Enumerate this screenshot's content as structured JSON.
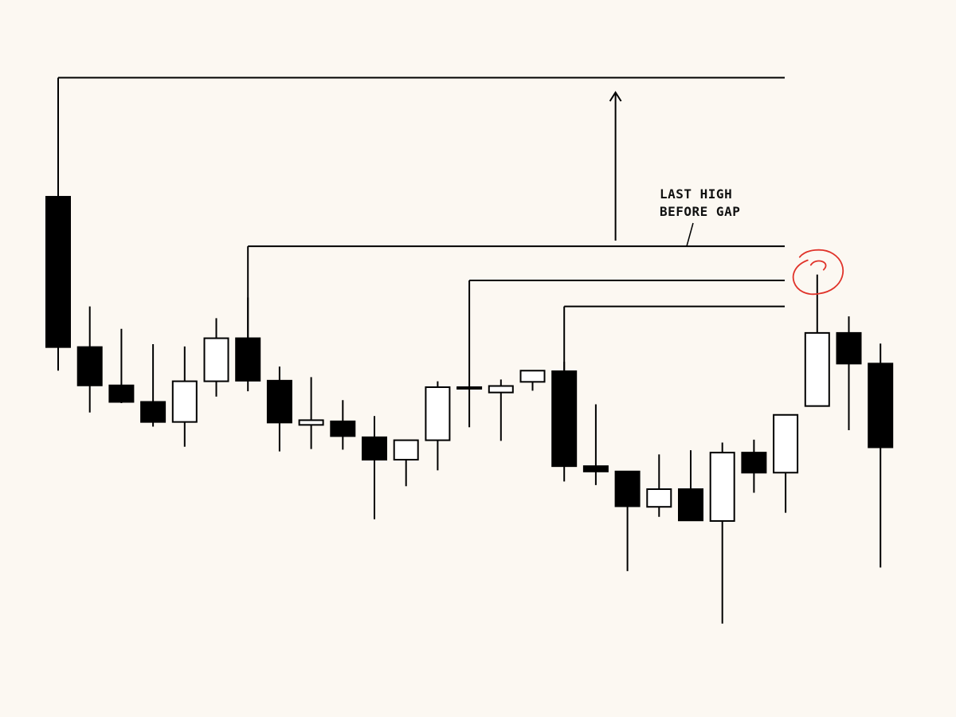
{
  "chart_data": {
    "type": "candlestick",
    "title": "",
    "xlabel": "",
    "ylabel": "",
    "ylim": [
      0,
      100
    ],
    "grid": false,
    "colors": {
      "background": "#fcf8f2",
      "bullish_body": "#ffffff",
      "bearish_body": "#000000",
      "line": "#000000",
      "highlight": "#e0332a"
    },
    "candles": [
      {
        "open": 79.6,
        "high": 82.3,
        "low": 50.1,
        "close": 54.1
      },
      {
        "open": 54.1,
        "high": 61.0,
        "low": 43.0,
        "close": 47.6
      },
      {
        "open": 47.6,
        "high": 57.2,
        "low": 44.6,
        "close": 44.8
      },
      {
        "open": 44.8,
        "high": 54.6,
        "low": 40.6,
        "close": 41.4
      },
      {
        "open": 41.4,
        "high": 54.2,
        "low": 37.2,
        "close": 48.3
      },
      {
        "open": 48.3,
        "high": 59.0,
        "low": 45.7,
        "close": 55.6
      },
      {
        "open": 55.6,
        "high": 62.5,
        "low": 46.6,
        "close": 48.4
      },
      {
        "open": 48.4,
        "high": 50.8,
        "low": 36.4,
        "close": 41.3
      },
      {
        "open": 40.9,
        "high": 49.0,
        "low": 36.8,
        "close": 41.7
      },
      {
        "open": 41.5,
        "high": 45.1,
        "low": 36.7,
        "close": 39.0
      },
      {
        "open": 38.8,
        "high": 42.4,
        "low": 24.9,
        "close": 35.0
      },
      {
        "open": 35.0,
        "high": 38.1,
        "low": 30.5,
        "close": 38.3
      },
      {
        "open": 38.3,
        "high": 48.3,
        "low": 33.2,
        "close": 47.3
      },
      {
        "open": 47.3,
        "high": 47.3,
        "low": 40.5,
        "close": 47.1
      },
      {
        "open": 46.4,
        "high": 48.6,
        "low": 38.2,
        "close": 47.5
      },
      {
        "open": 48.2,
        "high": 50.2,
        "low": 46.7,
        "close": 50.1
      },
      {
        "open": 50.0,
        "high": 51.6,
        "low": 31.3,
        "close": 33.9
      },
      {
        "open": 33.9,
        "high": 44.4,
        "low": 30.7,
        "close": 33.0
      },
      {
        "open": 33.0,
        "high": 32.7,
        "low": 16.1,
        "close": 27.1
      },
      {
        "open": 27.0,
        "high": 35.9,
        "low": 25.3,
        "close": 30.0
      },
      {
        "open": 30.0,
        "high": 36.6,
        "low": 25.1,
        "close": 24.7
      },
      {
        "open": 24.6,
        "high": 37.9,
        "low": 7.2,
        "close": 36.2
      },
      {
        "open": 36.2,
        "high": 38.4,
        "low": 29.4,
        "close": 32.8
      },
      {
        "open": 32.8,
        "high": 42.3,
        "low": 26.0,
        "close": 42.6
      },
      {
        "open": 44.1,
        "high": 66.4,
        "low": 44.1,
        "close": 56.5
      },
      {
        "open": 56.5,
        "high": 59.3,
        "low": 40.0,
        "close": 51.3
      },
      {
        "open": 51.3,
        "high": 54.7,
        "low": 16.7,
        "close": 37.1
      }
    ],
    "levels": [
      {
        "value": 99.8,
        "from_candle": 0
      },
      {
        "value": 71.2,
        "from_candle": 6
      },
      {
        "value": 65.4,
        "from_candle": 13
      },
      {
        "value": 61.0,
        "from_candle": 16
      }
    ],
    "arrow": {
      "direction": "up",
      "x_index": 18
    },
    "annotations": [
      {
        "text_lines": [
          "LAST HIGH",
          "BEFORE GAP"
        ]
      }
    ],
    "highlight_candle": 24
  }
}
